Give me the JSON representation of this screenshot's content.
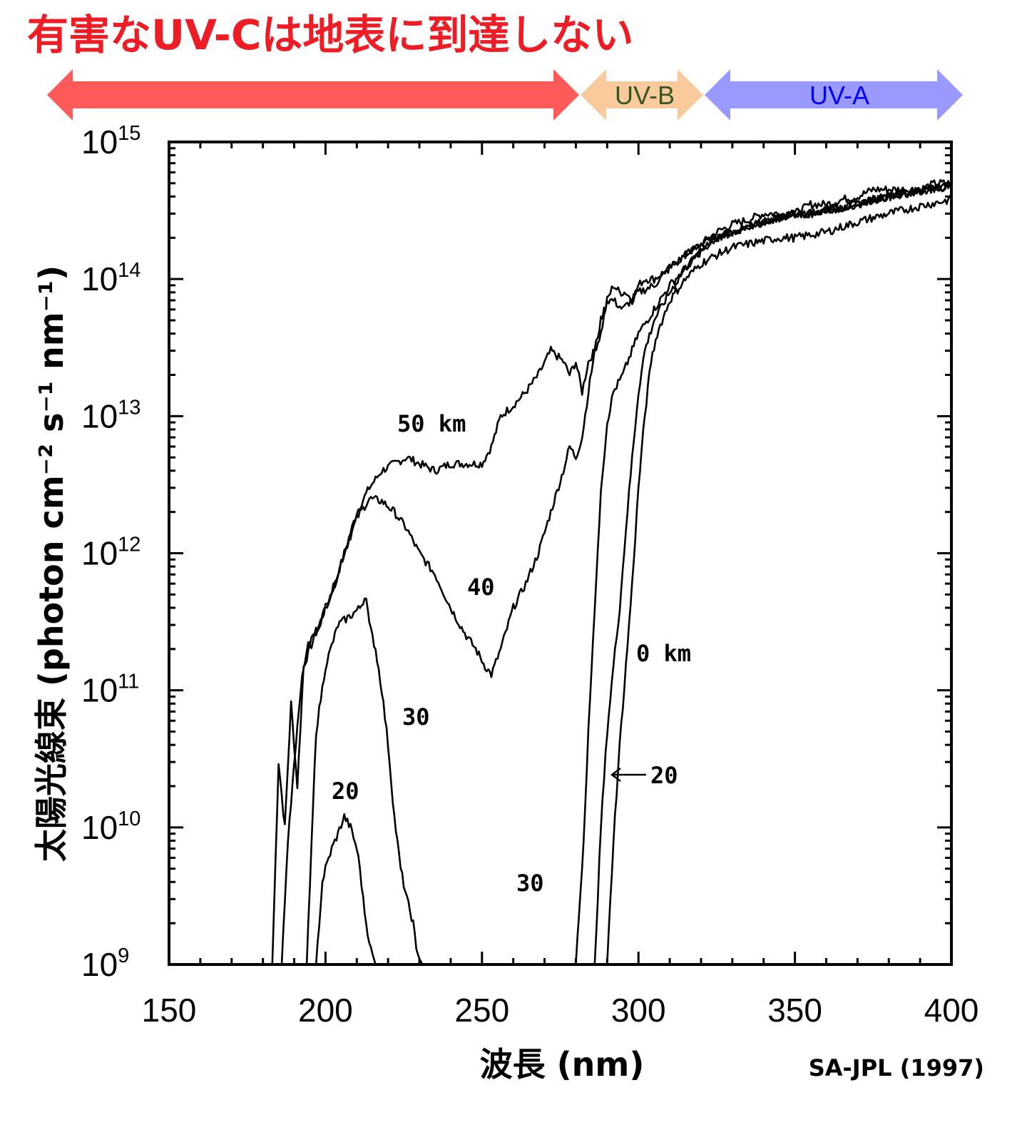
{
  "headline": "有害なUV-Cは地表に到達しない",
  "colors": {
    "headline": "#ee1c25",
    "uvc_arrow": "#ff5a5a",
    "uvb_arrow": "#f9cb9c",
    "uvb_text": "#375623",
    "uva_arrow": "#9999ff",
    "uva_text": "#0000ff",
    "ink": "#000000"
  },
  "bands": [
    {
      "name": "UV-C",
      "label": "",
      "from": 150,
      "to": 280
    },
    {
      "name": "UV-B",
      "label": "UV-B",
      "from": 280,
      "to": 315
    },
    {
      "name": "UV-A",
      "label": "UV-A",
      "from": 315,
      "to": 400
    }
  ],
  "source_note": "SA-JPL (1997)",
  "chart_data": {
    "type": "line",
    "title": "",
    "xlabel": "波長 (nm)",
    "ylabel": "太陽光線束 (photon cm⁻² s⁻¹ nm⁻¹)",
    "xlim": [
      150,
      400
    ],
    "ylim": [
      1000000000.0,
      1000000000000000.0
    ],
    "yscale": "log",
    "grid": false,
    "x_ticks": [
      "150",
      "200",
      "250",
      "300",
      "350",
      "400"
    ],
    "y_ticks": [
      {
        "base": "10",
        "exp": "9"
      },
      {
        "base": "10",
        "exp": "10"
      },
      {
        "base": "10",
        "exp": "11"
      },
      {
        "base": "10",
        "exp": "12"
      },
      {
        "base": "10",
        "exp": "13"
      },
      {
        "base": "10",
        "exp": "14"
      },
      {
        "base": "10",
        "exp": "15"
      }
    ],
    "series": [
      {
        "label": "50 km",
        "x": [
          183,
          185,
          187,
          189,
          191,
          193,
          195,
          198,
          200,
          203,
          206,
          210,
          214,
          218,
          222,
          226,
          230,
          235,
          240,
          245,
          250,
          253,
          256,
          260,
          264,
          268,
          272,
          276,
          278,
          280,
          282,
          284,
          286,
          288,
          290,
          292,
          294,
          296,
          298,
          300,
          302,
          305,
          310,
          315,
          320,
          325,
          330,
          335,
          340,
          345,
          350,
          355,
          360,
          365,
          370,
          375,
          380,
          385,
          390,
          395,
          400
        ],
        "y": [
          1000000000.0,
          30000000000.0,
          10000000000.0,
          80000000000.0,
          20000000000.0,
          150000000000.0,
          200000000000.0,
          300000000000.0,
          400000000000.0,
          600000000000.0,
          1000000000000.0,
          2000000000000.0,
          3000000000000.0,
          4000000000000.0,
          4500000000000.0,
          5000000000000.0,
          4500000000000.0,
          4000000000000.0,
          4500000000000.0,
          4500000000000.0,
          4500000000000.0,
          6000000000000.0,
          10000000000000.0,
          12000000000000.0,
          15000000000000.0,
          20000000000000.0,
          30000000000000.0,
          25000000000000.0,
          20000000000000.0,
          25000000000000.0,
          15000000000000.0,
          25000000000000.0,
          30000000000000.0,
          40000000000000.0,
          70000000000000.0,
          90000000000000.0,
          80000000000000.0,
          80000000000000.0,
          70000000000000.0,
          90000000000000.0,
          100000000000000.0,
          100000000000000.0,
          120000000000000.0,
          150000000000000.0,
          180000000000000.0,
          220000000000000.0,
          250000000000000.0,
          270000000000000.0,
          300000000000000.0,
          300000000000000.0,
          300000000000000.0,
          350000000000000.0,
          350000000000000.0,
          380000000000000.0,
          400000000000000.0,
          450000000000000.0,
          450000000000000.0,
          450000000000000.0,
          450000000000000.0,
          500000000000000.0,
          500000000000000.0
        ]
      },
      {
        "label": "40",
        "x": [
          186,
          188,
          190,
          192,
          194,
          196,
          198,
          200,
          203,
          206,
          210,
          214,
          218,
          222,
          226,
          230,
          235,
          240,
          243,
          245,
          248,
          251,
          253,
          256,
          260,
          264,
          268,
          272,
          276,
          278,
          280,
          282,
          284,
          286,
          288,
          290,
          292,
          295,
          300,
          305,
          310,
          315,
          320,
          325,
          330,
          335,
          340,
          345,
          350,
          355,
          360,
          365,
          370,
          375,
          380,
          385,
          390,
          395,
          400
        ],
        "y": [
          1000000000.0,
          8000000000.0,
          30000000000.0,
          100000000000.0,
          200000000000.0,
          250000000000.0,
          300000000000.0,
          400000000000.0,
          600000000000.0,
          1000000000000.0,
          1800000000000.0,
          2500000000000.0,
          2400000000000.0,
          2000000000000.0,
          1500000000000.0,
          1000000000000.0,
          700000000000.0,
          400000000000.0,
          300000000000.0,
          250000000000.0,
          200000000000.0,
          150000000000.0,
          130000000000.0,
          200000000000.0,
          400000000000.0,
          600000000000.0,
          1000000000000.0,
          2000000000000.0,
          4000000000000.0,
          6000000000000.0,
          5000000000000.0,
          7000000000000.0,
          15000000000000.0,
          30000000000000.0,
          50000000000000.0,
          70000000000000.0,
          70000000000000.0,
          60000000000000.0,
          80000000000000.0,
          90000000000000.0,
          120000000000000.0,
          150000000000000.0,
          180000000000000.0,
          200000000000000.0,
          220000000000000.0,
          240000000000000.0,
          260000000000000.0,
          280000000000000.0,
          300000000000000.0,
          300000000000000.0,
          320000000000000.0,
          330000000000000.0,
          350000000000000.0,
          380000000000000.0,
          400000000000000.0,
          420000000000000.0,
          440000000000000.0,
          460000000000000.0,
          480000000000000.0
        ]
      },
      {
        "label": "30",
        "x": [
          194,
          197,
          200,
          204,
          208,
          211,
          213,
          214,
          216,
          218,
          220,
          222,
          224,
          226,
          228,
          229,
          230,
          231
        ],
        "y": [
          1000000000.0,
          50000000000.0,
          150000000000.0,
          300000000000.0,
          350000000000.0,
          400000000000.0,
          500000000000.0,
          300000000000.0,
          200000000000.0,
          100000000000.0,
          40000000000.0,
          12000000000.0,
          5000000000.0,
          3000000000.0,
          2000000000.0,
          1300000000.0,
          1100000000.0,
          1000000000.0
        ]
      },
      {
        "label": "20",
        "x": [
          197,
          199,
          200,
          202,
          204,
          206,
          208,
          210,
          211,
          212,
          213,
          214,
          215,
          216
        ],
        "y": [
          1000000000.0,
          4000000000.0,
          5000000000.0,
          7000000000.0,
          9000000000.0,
          12000000000.0,
          10000000000.0,
          7000000000.0,
          5000000000.0,
          3000000000.0,
          2000000000.0,
          1500000000.0,
          1200000000.0,
          1000000000.0
        ]
      },
      {
        "label": "30",
        "x": [
          280,
          282,
          283,
          284,
          285,
          286,
          287,
          288,
          289,
          290,
          292,
          295,
          300,
          305,
          310,
          315,
          320,
          325,
          330,
          335,
          340,
          345,
          350,
          355,
          360,
          365,
          370,
          375,
          380,
          385,
          390,
          395,
          400
        ],
        "y": [
          1000000000.0,
          5000000000.0,
          15000000000.0,
          50000000000.0,
          150000000000.0,
          400000000000.0,
          1000000000000.0,
          3000000000000.0,
          5000000000000.0,
          9000000000000.0,
          15000000000000.0,
          20000000000000.0,
          40000000000000.0,
          60000000000000.0,
          90000000000000.0,
          120000000000000.0,
          160000000000000.0,
          200000000000000.0,
          220000000000000.0,
          240000000000000.0,
          260000000000000.0,
          280000000000000.0,
          300000000000000.0,
          300000000000000.0,
          320000000000000.0,
          330000000000000.0,
          350000000000000.0,
          380000000000000.0,
          400000000000000.0,
          420000000000000.0,
          440000000000000.0,
          460000000000000.0,
          480000000000000.0
        ]
      },
      {
        "label": "20",
        "x": [
          286,
          288,
          290,
          292,
          294,
          296,
          298,
          300,
          302,
          305,
          310,
          315,
          320,
          325,
          330,
          335,
          340,
          345,
          350,
          355,
          360,
          365,
          370,
          375,
          380,
          385,
          390,
          395,
          400
        ],
        "y": [
          1000000000.0,
          10000000000.0,
          50000000000.0,
          150000000000.0,
          400000000000.0,
          1500000000000.0,
          5000000000000.0,
          15000000000000.0,
          30000000000000.0,
          50000000000000.0,
          80000000000000.0,
          120000000000000.0,
          160000000000000.0,
          200000000000000.0,
          220000000000000.0,
          240000000000000.0,
          260000000000000.0,
          280000000000000.0,
          300000000000000.0,
          300000000000000.0,
          320000000000000.0,
          330000000000000.0,
          350000000000000.0,
          380000000000000.0,
          400000000000000.0,
          420000000000000.0,
          440000000000000.0,
          460000000000000.0,
          480000000000000.0
        ]
      },
      {
        "label": "0 km",
        "x": [
          290,
          292,
          294,
          296,
          298,
          300,
          302,
          304,
          306,
          310,
          315,
          320,
          325,
          330,
          335,
          340,
          345,
          350,
          355,
          360,
          365,
          370,
          375,
          380,
          385,
          390,
          395,
          400
        ],
        "y": [
          1000000000.0,
          8000000000.0,
          40000000000.0,
          150000000000.0,
          600000000000.0,
          3000000000000.0,
          10000000000000.0,
          25000000000000.0,
          40000000000000.0,
          70000000000000.0,
          100000000000000.0,
          130000000000000.0,
          150000000000000.0,
          170000000000000.0,
          180000000000000.0,
          190000000000000.0,
          200000000000000.0,
          200000000000000.0,
          210000000000000.0,
          220000000000000.0,
          240000000000000.0,
          260000000000000.0,
          280000000000000.0,
          300000000000000.0,
          320000000000000.0,
          340000000000000.0,
          360000000000000.0,
          380000000000000.0
        ]
      }
    ]
  }
}
